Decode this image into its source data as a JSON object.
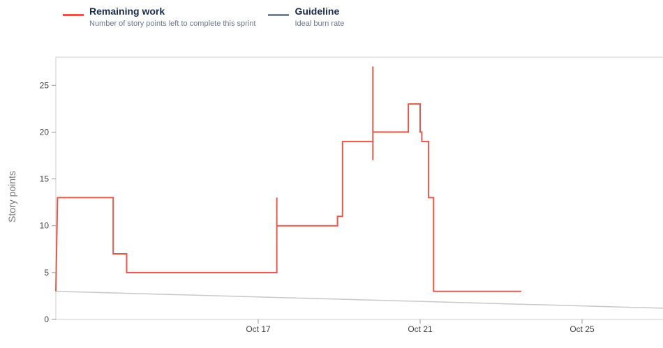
{
  "legend": [
    {
      "title": "Remaining work",
      "description": "Number of story points left to complete this sprint",
      "color": "#e8584a"
    },
    {
      "title": "Guideline",
      "description": "Ideal burn rate",
      "color": "#7b8795"
    }
  ],
  "chart_data": {
    "type": "line",
    "ylabel": "Story points",
    "xlabel": "",
    "ylim": [
      0,
      28
    ],
    "yticks": [
      0,
      5,
      10,
      15,
      20,
      25
    ],
    "xlim": [
      "2024-10-12 00:00",
      "2024-10-27 00:00"
    ],
    "xticks": [
      {
        "label": "Oct 17",
        "x": "2024-10-17 00:00"
      },
      {
        "label": "Oct 21",
        "x": "2024-10-21 00:00"
      },
      {
        "label": "Oct 25",
        "x": "2024-10-25 00:00"
      }
    ],
    "grid": false,
    "legend_position": "top-left",
    "series": [
      {
        "name": "Remaining work",
        "color": "#e8584a",
        "step": true,
        "points": [
          [
            "2024-10-12 00:00",
            3
          ],
          [
            "2024-10-12 01:00",
            13
          ],
          [
            "2024-10-13 10:00",
            13
          ],
          [
            "2024-10-13 10:00",
            7
          ],
          [
            "2024-10-13 18:00",
            7
          ],
          [
            "2024-10-13 18:00",
            5
          ],
          [
            "2024-10-17 11:00",
            5
          ],
          [
            "2024-10-17 11:00",
            13
          ],
          [
            "2024-10-17 11:00",
            8
          ],
          [
            "2024-10-17 11:00",
            10
          ],
          [
            "2024-10-18 23:00",
            10
          ],
          [
            "2024-10-18 23:00",
            11
          ],
          [
            "2024-10-19 02:00",
            11
          ],
          [
            "2024-10-19 02:00",
            19
          ],
          [
            "2024-10-19 20:00",
            19
          ],
          [
            "2024-10-19 20:00",
            27
          ],
          [
            "2024-10-19 20:00",
            17
          ],
          [
            "2024-10-19 20:00",
            20
          ],
          [
            "2024-10-20 17:00",
            20
          ],
          [
            "2024-10-20 17:00",
            23
          ],
          [
            "2024-10-21 00:00",
            23
          ],
          [
            "2024-10-21 00:00",
            20
          ],
          [
            "2024-10-21 01:00",
            20
          ],
          [
            "2024-10-21 01:00",
            19
          ],
          [
            "2024-10-21 05:00",
            19
          ],
          [
            "2024-10-21 05:00",
            13
          ],
          [
            "2024-10-21 08:00",
            13
          ],
          [
            "2024-10-21 08:00",
            3
          ],
          [
            "2024-10-23 12:00",
            3
          ]
        ]
      },
      {
        "name": "Guideline",
        "color": "#c8c8c8",
        "step": false,
        "points": [
          [
            "2024-10-12 00:00",
            3
          ],
          [
            "2024-10-27 00:00",
            1.2
          ]
        ]
      }
    ]
  }
}
